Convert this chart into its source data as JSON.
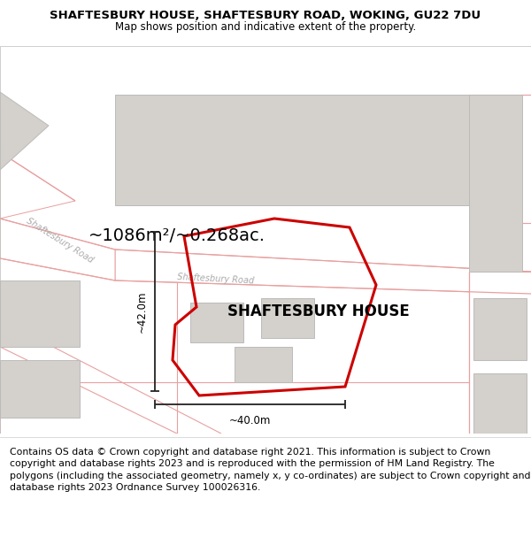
{
  "title_line1": "SHAFTESBURY HOUSE, SHAFTESBURY ROAD, WOKING, GU22 7DU",
  "title_line2": "Map shows position and indicative extent of the property.",
  "property_label": "SHAFTESBURY HOUSE",
  "area_label": "~1086m²/~0.268ac.",
  "dim_horizontal": "~40.0m",
  "dim_vertical": "~42.0m",
  "footer_text": "Contains OS data © Crown copyright and database right 2021. This information is subject to Crown copyright and database rights 2023 and is reproduced with the permission of HM Land Registry. The polygons (including the associated geometry, namely x, y co-ordinates) are subject to Crown copyright and database rights 2023 Ordnance Survey 100026316.",
  "map_bg": "#f0eeea",
  "road_fill": "#ffffff",
  "building_fill": "#d4d0cb",
  "building_edge": "#bbbbbb",
  "boundary_color": "#cc0000",
  "road_line_color": "#e8a0a0",
  "road_line_color2": "#d08080",
  "dim_line_color": "#222222",
  "title_fontsize": 9.5,
  "subtitle_fontsize": 8.5,
  "footer_fontsize": 7.8,
  "prop_label_fontsize": 12,
  "area_fontsize": 14,
  "dim_fontsize": 8.5,
  "road_label_fontsize": 7,
  "road_label_color": "#aaaaaa"
}
